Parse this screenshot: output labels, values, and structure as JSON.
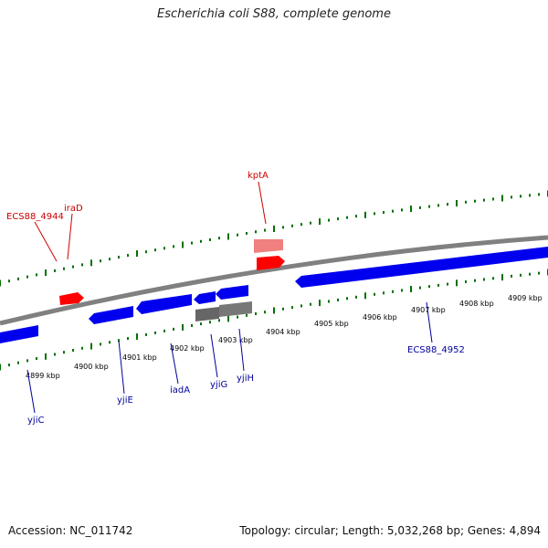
{
  "title": "Escherichia coli S88, complete genome",
  "footer": {
    "accession": "Accession: NC_011742",
    "summary": "Topology: circular; Length: 5,032,268 bp; Genes: 4,894"
  },
  "colors": {
    "forward_gene": "#ff0000",
    "reverse_gene": "#0000ff",
    "pseudo_gene": "#606060",
    "pale_forward": "#f08080",
    "tick": "#007000",
    "backbone": "#808080",
    "forward_label": "#cc0000",
    "reverse_label": "#000099"
  },
  "axis": {
    "unit": "kbp",
    "labels": [
      "4899 kbp",
      "4900 kbp",
      "4901 kbp",
      "4902 kbp",
      "4903 kbp",
      "4904 kbp",
      "4905 kbp",
      "4906 kbp",
      "4907 kbp",
      "4908 kbp",
      "4909 kbp"
    ]
  },
  "genes_forward": [
    {
      "name": "ECS88_4944"
    },
    {
      "name": "iraD"
    },
    {
      "name": "kptA"
    }
  ],
  "genes_reverse": [
    {
      "name": "yjiC"
    },
    {
      "name": "yjiE"
    },
    {
      "name": "iadA"
    },
    {
      "name": "yjiG"
    },
    {
      "name": "yjiH"
    },
    {
      "name": "ECS88_4952"
    }
  ]
}
